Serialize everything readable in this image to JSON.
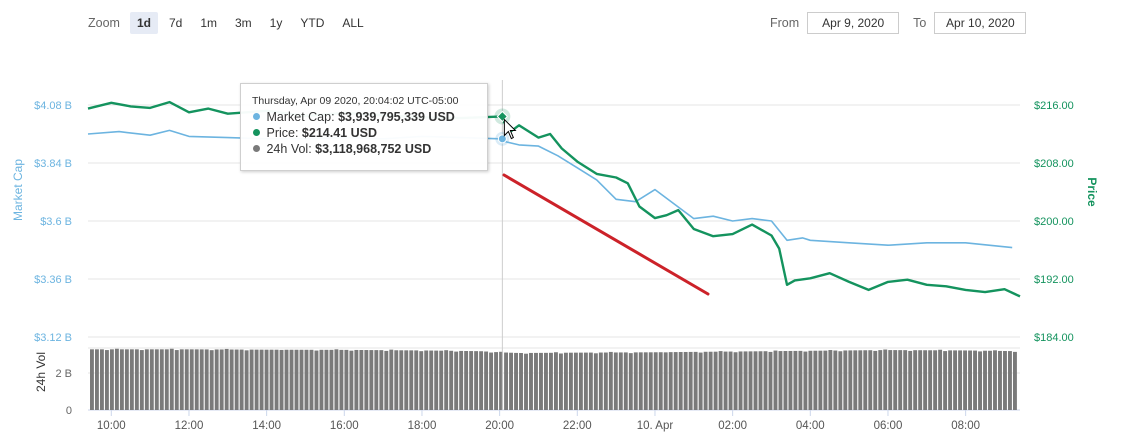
{
  "zoom": {
    "label": "Zoom",
    "buttons": [
      "1d",
      "7d",
      "1m",
      "3m",
      "1y",
      "YTD",
      "ALL"
    ],
    "active": "1d"
  },
  "range": {
    "from_label": "From",
    "from_value": "Apr 9, 2020",
    "to_label": "To",
    "to_value": "Apr 10, 2020"
  },
  "tooltip": {
    "date": "Thursday, Apr 09 2020, 20:04:02 UTC-05:00",
    "market_cap_label": "Market Cap:",
    "market_cap_value": "$3,939,795,339 USD",
    "price_label": "Price:",
    "price_value": "$214.41 USD",
    "vol_label": "24h Vol:",
    "vol_value": "$3,118,968,752 USD"
  },
  "colors": {
    "market_cap": "#6cb4e0",
    "price": "#14935e",
    "volume": "#7a7a7a",
    "annotation": "#cc2229"
  },
  "chart_data": {
    "type": "line",
    "xlabel": "",
    "x_ticks": [
      "10:00",
      "12:00",
      "14:00",
      "16:00",
      "18:00",
      "20:00",
      "22:00",
      "10. Apr",
      "02:00",
      "04:00",
      "06:00",
      "08:00"
    ],
    "x_range": [
      9.4,
      33.4
    ],
    "hover_x": 20.07,
    "left_axis": {
      "label": "Market Cap",
      "ticks": [
        "$4.08 B",
        "$3.84 B",
        "$3.6 B",
        "$3.36 B",
        "$3.12 B"
      ],
      "tick_values": [
        4.08,
        3.84,
        3.6,
        3.36,
        3.12
      ],
      "range": [
        3.12,
        4.08
      ]
    },
    "right_axis": {
      "label": "Price",
      "ticks": [
        "$216.00",
        "$208.00",
        "$200.00",
        "$192.00",
        "$184.00"
      ],
      "tick_values": [
        216,
        208,
        200,
        192,
        184
      ],
      "range": [
        184,
        216
      ]
    },
    "volume_axis": {
      "label": "24h Vol",
      "ticks": [
        "2 B",
        "0"
      ],
      "tick_values": [
        2,
        0
      ],
      "range": [
        0,
        4
      ]
    },
    "series": [
      {
        "name": "Market Cap",
        "axis": "left",
        "x": [
          9.4,
          10.2,
          11.0,
          11.5,
          12.0,
          13.0,
          14.0,
          15.0,
          16.0,
          17.0,
          18.0,
          19.0,
          20.0,
          20.1,
          20.5,
          21.0,
          21.5,
          22.0,
          22.5,
          23.0,
          23.5,
          24.0,
          24.5,
          25.0,
          25.5,
          26.0,
          26.5,
          27.0,
          27.4,
          27.8,
          28.0,
          29.0,
          30.0,
          31.0,
          32.0,
          33.2
        ],
        "values": [
          3.96,
          3.97,
          3.955,
          3.975,
          3.95,
          3.945,
          3.94,
          3.94,
          3.945,
          3.94,
          3.95,
          3.945,
          3.94,
          3.93,
          3.915,
          3.91,
          3.87,
          3.82,
          3.77,
          3.69,
          3.68,
          3.73,
          3.67,
          3.61,
          3.62,
          3.6,
          3.61,
          3.6,
          3.52,
          3.53,
          3.52,
          3.51,
          3.5,
          3.51,
          3.51,
          3.49
        ]
      },
      {
        "name": "Price",
        "axis": "right",
        "x": [
          9.4,
          10.0,
          10.5,
          11.0,
          11.5,
          12.0,
          12.5,
          13.0,
          14.0,
          15.0,
          16.0,
          17.0,
          18.0,
          19.0,
          20.0,
          20.3,
          20.5,
          21.0,
          21.3,
          21.6,
          22.0,
          22.5,
          23.0,
          23.3,
          23.6,
          24.0,
          24.3,
          24.6,
          25.0,
          25.5,
          26.0,
          26.5,
          27.0,
          27.2,
          27.4,
          27.6,
          28.0,
          28.5,
          29.0,
          29.5,
          30.0,
          30.5,
          31.0,
          31.5,
          32.0,
          32.5,
          33.0,
          33.4
        ],
        "values": [
          215.5,
          216.3,
          215.8,
          215.6,
          216.4,
          215.0,
          215.5,
          214.8,
          215.2,
          214.5,
          214.9,
          214.6,
          214.3,
          214.2,
          214.4,
          212.4,
          213.2,
          211.5,
          212.0,
          210.0,
          208.2,
          206.5,
          206.0,
          205.2,
          202.0,
          200.4,
          200.8,
          201.5,
          198.9,
          197.9,
          198.2,
          199.5,
          198.0,
          196.2,
          191.2,
          191.8,
          192.1,
          192.8,
          191.6,
          190.5,
          191.6,
          191.9,
          191.2,
          191.0,
          190.5,
          190.2,
          190.6,
          189.6
        ]
      },
      {
        "name": "24h Vol",
        "axis": "volume",
        "x": [
          9.4,
          12.0,
          14.0,
          16.0,
          18.0,
          19.5,
          20.0,
          20.5,
          22.0,
          24.0,
          26.0,
          28.0,
          30.0,
          32.0,
          33.4
        ],
        "values": [
          3.28,
          3.28,
          3.26,
          3.25,
          3.22,
          3.18,
          3.12,
          3.08,
          3.1,
          3.12,
          3.16,
          3.2,
          3.24,
          3.22,
          3.18
        ]
      }
    ],
    "hover_points": {
      "market_cap": 3.94,
      "price": 214.41
    }
  }
}
